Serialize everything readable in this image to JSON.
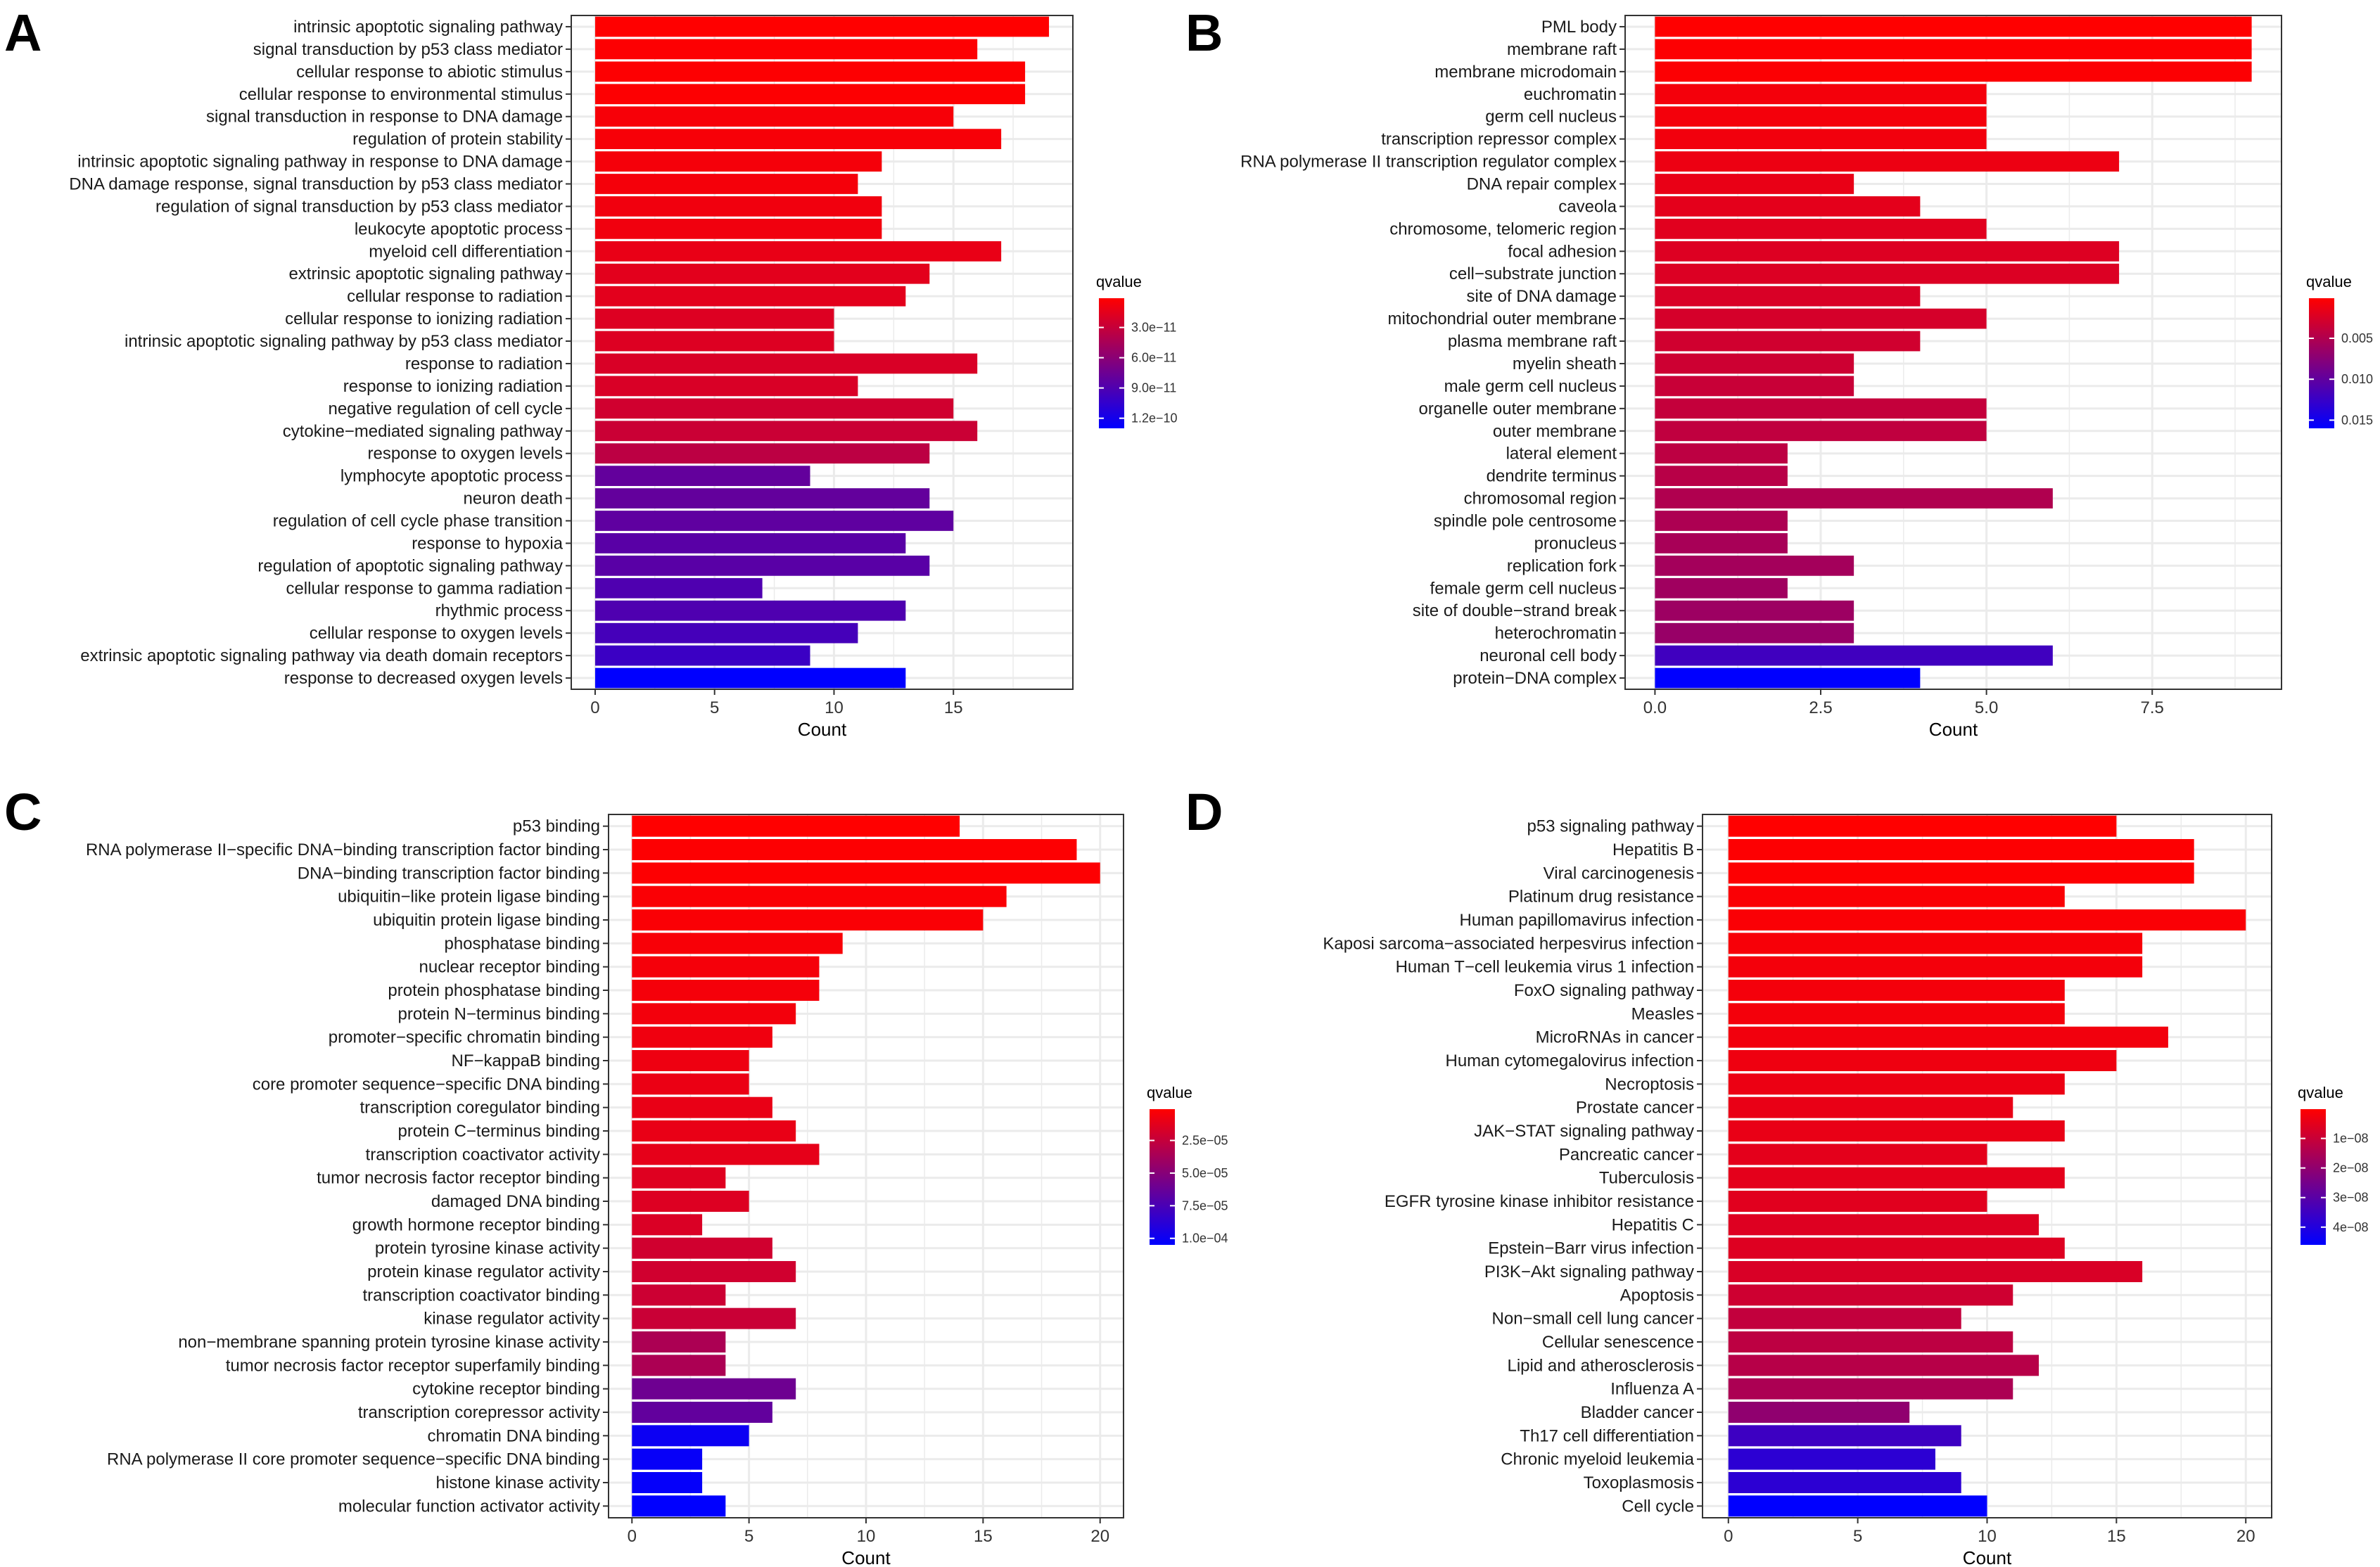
{
  "figure": {
    "colors": {
      "low": "#0000ff",
      "high": "#ff0000",
      "grid": "#ebebeb",
      "frame": "#333333"
    }
  },
  "chart_data": [
    {
      "panel": "A",
      "type": "bar",
      "orientation": "horizontal",
      "xlabel": "Count",
      "xlim": [
        -1.0,
        20.0
      ],
      "xticks": [
        0,
        5,
        10,
        15
      ],
      "xtick_labels": [
        "0",
        "5",
        "10",
        "15"
      ],
      "legend_title": "qvalue",
      "legend_range": [
        1e-12,
        1.3e-10
      ],
      "legend_ticks": [
        3e-11,
        6e-11,
        9e-11,
        1.2e-10
      ],
      "legend_tick_labels": [
        "3.0e−11",
        "6.0e−11",
        "9.0e−11",
        "1.2e−10"
      ],
      "categories": [
        "intrinsic apoptotic signaling pathway",
        "signal transduction by p53 class mediator",
        "cellular response to abiotic stimulus",
        "cellular response to environmental stimulus",
        "signal transduction in response to DNA damage",
        "regulation of protein stability",
        "intrinsic apoptotic signaling pathway in response to DNA damage",
        "DNA damage response, signal transduction by p53 class mediator",
        "regulation of signal transduction by p53 class mediator",
        "leukocyte apoptotic process",
        "myeloid cell differentiation",
        "extrinsic apoptotic signaling pathway",
        "cellular response to radiation",
        "cellular response to ionizing radiation",
        "intrinsic apoptotic signaling pathway by p53 class mediator",
        "response to radiation",
        "response to ionizing radiation",
        "negative regulation of cell cycle",
        "cytokine−mediated signaling pathway",
        "response to oxygen levels",
        "lymphocyte apoptotic process",
        "neuron death",
        "regulation of cell cycle phase transition",
        "response to hypoxia",
        "regulation of apoptotic signaling pathway",
        "cellular response to gamma radiation",
        "rhythmic process",
        "cellular response to oxygen levels",
        "extrinsic apoptotic signaling pathway via death domain receptors",
        "response to decreased oxygen levels"
      ],
      "values": [
        19,
        16,
        18,
        18,
        15,
        17,
        12,
        11,
        12,
        12,
        17,
        14,
        13,
        10,
        10,
        16,
        11,
        15,
        16,
        14,
        9,
        14,
        15,
        13,
        14,
        7,
        13,
        11,
        9,
        13
      ],
      "qvalues": [
        1e-12,
        2e-12,
        2e-12,
        2e-12,
        5e-12,
        5e-12,
        6e-12,
        6e-12,
        8e-12,
        8e-12,
        1.2e-11,
        1.5e-11,
        1.5e-11,
        1.8e-11,
        1.8e-11,
        2e-11,
        2e-11,
        2.5e-11,
        2.8e-11,
        3.5e-11,
        8e-11,
        8e-11,
        8.2e-11,
        8.5e-11,
        8.5e-11,
        9e-11,
        9e-11,
        9.5e-11,
        1e-10,
        1.3e-10
      ]
    },
    {
      "panel": "B",
      "type": "bar",
      "orientation": "horizontal",
      "xlabel": "Count",
      "xlim": [
        -0.45,
        9.45
      ],
      "xticks": [
        0,
        2.5,
        5,
        7.5
      ],
      "xtick_labels": [
        "0.0",
        "2.5",
        "5.0",
        "7.5"
      ],
      "legend_title": "qvalue",
      "legend_range": [
        0.0001,
        0.016
      ],
      "legend_ticks": [
        0.005,
        0.01,
        0.015
      ],
      "legend_tick_labels": [
        "0.005",
        "0.010",
        "0.015"
      ],
      "categories": [
        "PML body",
        "membrane raft",
        "membrane microdomain",
        "euchromatin",
        "germ cell nucleus",
        "transcription repressor complex",
        "RNA polymerase II transcription regulator complex",
        "DNA repair complex",
        "caveola",
        "chromosome, telomeric region",
        "focal adhesion",
        "cell−substrate junction",
        "site of DNA damage",
        "mitochondrial outer membrane",
        "plasma membrane raft",
        "myelin sheath",
        "male germ cell nucleus",
        "organelle outer membrane",
        "outer membrane",
        "lateral element",
        "dendrite terminus",
        "chromosomal region",
        "spindle pole centrosome",
        "pronucleus",
        "replication fork",
        "female germ cell nucleus",
        "site of double−strand break",
        "heterochromatin",
        "neuronal cell body",
        "protein−DNA complex"
      ],
      "values": [
        9,
        9,
        9,
        5,
        5,
        5,
        7,
        3,
        4,
        5,
        7,
        7,
        4,
        5,
        4,
        3,
        3,
        5,
        5,
        2,
        2,
        6,
        2,
        2,
        3,
        2,
        3,
        3,
        6,
        4
      ],
      "qvalues": [
        0.0001,
        0.0002,
        0.0003,
        0.0008,
        0.0008,
        0.0009,
        0.0012,
        0.0015,
        0.0018,
        0.002,
        0.0022,
        0.0023,
        0.0025,
        0.0027,
        0.003,
        0.0032,
        0.0035,
        0.0038,
        0.004,
        0.0042,
        0.0045,
        0.005,
        0.0052,
        0.0055,
        0.0058,
        0.006,
        0.0062,
        0.0065,
        0.012,
        0.016
      ]
    },
    {
      "panel": "C",
      "type": "bar",
      "orientation": "horizontal",
      "xlabel": "Count",
      "xlim": [
        -1.0,
        21.0
      ],
      "xticks": [
        0,
        5,
        10,
        15,
        20
      ],
      "xtick_labels": [
        "0",
        "5",
        "10",
        "15",
        "20"
      ],
      "legend_title": "qvalue",
      "legend_range": [
        1e-06,
        0.000105
      ],
      "legend_ticks": [
        2.5e-05,
        5e-05,
        7.5e-05,
        0.0001
      ],
      "legend_tick_labels": [
        "2.5e−05",
        "5.0e−05",
        "7.5e−05",
        "1.0e−04"
      ],
      "categories": [
        "p53 binding",
        "RNA polymerase II−specific DNA−binding transcription factor binding",
        "DNA−binding transcription factor binding",
        "ubiquitin−like protein ligase binding",
        "ubiquitin protein ligase binding",
        "phosphatase binding",
        "nuclear receptor binding",
        "protein phosphatase binding",
        "protein N−terminus binding",
        "promoter−specific chromatin binding",
        "NF−kappaB binding",
        "core promoter sequence−specific DNA binding",
        "transcription coregulator binding",
        "protein C−terminus binding",
        "transcription coactivator activity",
        "tumor necrosis factor receptor binding",
        "damaged DNA binding",
        "growth hormone receptor binding",
        "protein tyrosine kinase activity",
        "protein kinase regulator activity",
        "transcription coactivator binding",
        "kinase regulator activity",
        "non−membrane spanning protein tyrosine kinase activity",
        "tumor necrosis factor receptor superfamily binding",
        "cytokine receptor binding",
        "transcription corepressor activity",
        "chromatin DNA binding",
        "RNA polymerase II core promoter sequence−specific DNA binding",
        "histone kinase activity",
        "molecular function activator activity"
      ],
      "values": [
        14,
        19,
        20,
        16,
        15,
        9,
        8,
        8,
        7,
        6,
        5,
        5,
        6,
        7,
        8,
        4,
        5,
        3,
        6,
        7,
        4,
        7,
        4,
        4,
        7,
        6,
        5,
        3,
        3,
        4
      ],
      "qvalues": [
        1e-06,
        2e-06,
        2e-06,
        3e-06,
        3e-06,
        4e-06,
        5e-06,
        5e-06,
        6e-06,
        7e-06,
        8e-06,
        9e-06,
        1e-05,
        1e-05,
        1.1e-05,
        1.4e-05,
        1.5e-05,
        1.6e-05,
        2e-05,
        2e-05,
        2.2e-05,
        2.3e-05,
        3.5e-05,
        3.5e-05,
        6e-05,
        6.5e-05,
        0.0001,
        0.000102,
        0.000103,
        0.000105
      ]
    },
    {
      "panel": "D",
      "type": "bar",
      "orientation": "horizontal",
      "xlabel": "Count",
      "xlim": [
        -1.0,
        21.0
      ],
      "xticks": [
        0,
        5,
        10,
        15,
        20
      ],
      "xtick_labels": [
        "0",
        "5",
        "10",
        "15",
        "20"
      ],
      "legend_title": "qvalue",
      "legend_range": [
        1e-10,
        4.6e-08
      ],
      "legend_ticks": [
        1e-08,
        2e-08,
        3e-08,
        4e-08
      ],
      "legend_tick_labels": [
        "1e−08",
        "2e−08",
        "3e−08",
        "4e−08"
      ],
      "categories": [
        "p53 signaling pathway",
        "Hepatitis B",
        "Viral carcinogenesis",
        "Platinum drug resistance",
        "Human papillomavirus infection",
        "Kaposi sarcoma−associated herpesvirus infection",
        "Human T−cell leukemia virus 1 infection",
        "FoxO signaling pathway",
        "Measles",
        "MicroRNAs in cancer",
        "Human cytomegalovirus infection",
        "Necroptosis",
        "Prostate cancer",
        "JAK−STAT signaling pathway",
        "Pancreatic cancer",
        "Tuberculosis",
        "EGFR tyrosine kinase inhibitor resistance",
        "Hepatitis C",
        "Epstein−Barr virus infection",
        "PI3K−Akt signaling pathway",
        "Apoptosis",
        "Non−small cell lung cancer",
        "Cellular senescence",
        "Lipid and atherosclerosis",
        "Influenza A",
        "Bladder cancer",
        "Th17 cell differentiation",
        "Chronic myeloid leukemia",
        "Toxoplasmosis",
        "Cell cycle"
      ],
      "values": [
        15,
        18,
        18,
        13,
        20,
        16,
        16,
        13,
        13,
        17,
        15,
        13,
        11,
        13,
        10,
        13,
        10,
        12,
        13,
        16,
        11,
        9,
        11,
        12,
        11,
        7,
        9,
        8,
        9,
        10
      ],
      "qvalues": [
        1e-10,
        5e-10,
        5e-10,
        1e-09,
        1e-09,
        1.5e-09,
        2e-09,
        2e-09,
        2e-09,
        2.5e-09,
        3e-09,
        3.5e-09,
        4e-09,
        4e-09,
        5e-09,
        5e-09,
        5.5e-09,
        6e-09,
        6e-09,
        7e-09,
        9e-09,
        1.1e-08,
        1.2e-08,
        1.3e-08,
        1.5e-08,
        2e-08,
        3.5e-08,
        3.8e-08,
        3.8e-08,
        4.6e-08
      ]
    }
  ]
}
